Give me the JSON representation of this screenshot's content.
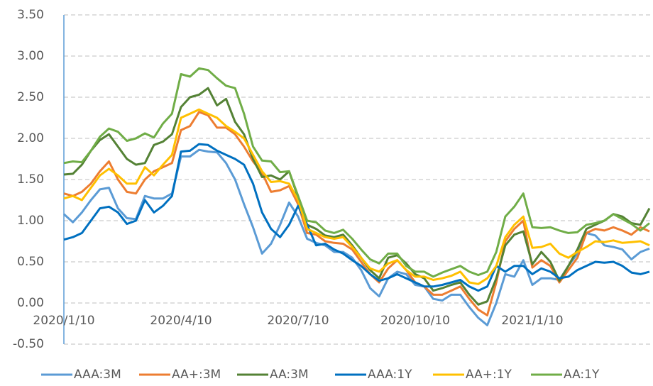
{
  "chart_data": {
    "type": "line",
    "categories": [
      "2020/1/10",
      null,
      null,
      null,
      null,
      null,
      null,
      null,
      null,
      null,
      null,
      null,
      null,
      "2020/4/10",
      null,
      null,
      null,
      null,
      null,
      null,
      null,
      null,
      null,
      null,
      null,
      null,
      "2020/7/10",
      null,
      null,
      null,
      null,
      null,
      null,
      null,
      null,
      null,
      null,
      null,
      null,
      "2020/10/10",
      null,
      null,
      null,
      null,
      null,
      null,
      null,
      null,
      null,
      null,
      null,
      null,
      "2021/1/10",
      null,
      null,
      null,
      null,
      null,
      null,
      null,
      null,
      null,
      null,
      null,
      null,
      null
    ],
    "series": [
      {
        "name": "AAA:3M",
        "color": "#5b9bd5",
        "values": [
          1.08,
          0.98,
          1.1,
          1.25,
          1.38,
          1.4,
          1.15,
          1.03,
          1.02,
          1.3,
          1.27,
          1.27,
          1.33,
          1.78,
          1.78,
          1.86,
          1.84,
          1.83,
          1.7,
          1.5,
          1.2,
          0.92,
          0.6,
          0.72,
          0.95,
          1.22,
          1.05,
          0.78,
          0.73,
          0.7,
          0.62,
          0.62,
          0.55,
          0.4,
          0.18,
          0.08,
          0.3,
          0.38,
          0.35,
          0.22,
          0.2,
          0.05,
          0.03,
          0.1,
          0.1,
          -0.05,
          -0.18,
          -0.27,
          0.0,
          0.35,
          0.32,
          0.52,
          0.22,
          0.3,
          0.3,
          0.28,
          0.45,
          0.6,
          0.85,
          0.82,
          0.7,
          0.68,
          0.65,
          0.53,
          0.62,
          0.66
        ]
      },
      {
        "name": "AA+:3M",
        "color": "#ed7d31",
        "values": [
          1.33,
          1.3,
          1.35,
          1.45,
          1.6,
          1.72,
          1.5,
          1.35,
          1.33,
          1.5,
          1.6,
          1.65,
          1.7,
          2.1,
          2.15,
          2.32,
          2.28,
          2.13,
          2.13,
          2.05,
          1.9,
          1.72,
          1.58,
          1.35,
          1.37,
          1.42,
          1.2,
          0.85,
          0.83,
          0.75,
          0.73,
          0.72,
          0.65,
          0.5,
          0.35,
          0.25,
          0.42,
          0.52,
          0.4,
          0.25,
          0.2,
          0.1,
          0.1,
          0.15,
          0.2,
          0.05,
          -0.08,
          -0.15,
          0.25,
          0.75,
          0.9,
          1.0,
          0.43,
          0.52,
          0.45,
          0.25,
          0.4,
          0.55,
          0.85,
          0.9,
          0.88,
          0.92,
          0.88,
          0.83,
          0.92,
          0.87
        ]
      },
      {
        "name": "AA:3M",
        "color": "#548235",
        "values": [
          1.56,
          1.57,
          1.68,
          1.85,
          1.98,
          2.05,
          1.9,
          1.75,
          1.68,
          1.7,
          1.92,
          1.96,
          2.05,
          2.38,
          2.5,
          2.53,
          2.61,
          2.4,
          2.48,
          2.2,
          2.05,
          1.75,
          1.53,
          1.55,
          1.5,
          1.6,
          1.28,
          0.95,
          0.9,
          0.82,
          0.8,
          0.83,
          0.7,
          0.55,
          0.4,
          0.3,
          0.55,
          0.58,
          0.48,
          0.35,
          0.3,
          0.15,
          0.18,
          0.22,
          0.25,
          0.1,
          -0.02,
          0.02,
          0.3,
          0.7,
          0.83,
          0.87,
          0.47,
          0.62,
          0.5,
          0.27,
          0.45,
          0.65,
          0.9,
          0.95,
          1.0,
          1.08,
          1.05,
          0.97,
          0.95,
          1.15
        ]
      },
      {
        "name": "AAA:1Y",
        "color": "#0070c0",
        "values": [
          0.77,
          0.8,
          0.85,
          1.0,
          1.15,
          1.17,
          1.1,
          0.96,
          1.0,
          1.25,
          1.1,
          1.18,
          1.3,
          1.84,
          1.85,
          1.93,
          1.92,
          1.85,
          1.8,
          1.75,
          1.68,
          1.45,
          1.1,
          0.9,
          0.8,
          0.95,
          1.18,
          0.95,
          0.7,
          0.72,
          0.65,
          0.6,
          0.52,
          0.45,
          0.35,
          0.27,
          0.3,
          0.35,
          0.3,
          0.25,
          0.2,
          0.2,
          0.22,
          0.25,
          0.28,
          0.2,
          0.15,
          0.2,
          0.45,
          0.38,
          0.45,
          0.45,
          0.35,
          0.42,
          0.38,
          0.3,
          0.32,
          0.4,
          0.45,
          0.5,
          0.49,
          0.5,
          0.45,
          0.37,
          0.35,
          0.38
        ]
      },
      {
        "name": "AA+:1Y",
        "color": "#ffc000",
        "values": [
          1.27,
          1.3,
          1.25,
          1.4,
          1.55,
          1.63,
          1.55,
          1.45,
          1.45,
          1.65,
          1.55,
          1.68,
          1.8,
          2.25,
          2.3,
          2.35,
          2.3,
          2.25,
          2.15,
          2.08,
          2.0,
          1.8,
          1.6,
          1.47,
          1.48,
          1.45,
          1.25,
          0.9,
          0.85,
          0.8,
          0.78,
          0.8,
          0.68,
          0.55,
          0.42,
          0.38,
          0.48,
          0.52,
          0.4,
          0.32,
          0.32,
          0.28,
          0.3,
          0.33,
          0.38,
          0.25,
          0.23,
          0.3,
          0.45,
          0.8,
          0.95,
          1.05,
          0.67,
          0.68,
          0.72,
          0.6,
          0.55,
          0.62,
          0.68,
          0.75,
          0.74,
          0.76,
          0.73,
          0.74,
          0.75,
          0.7
        ]
      },
      {
        "name": "AA:1Y",
        "color": "#70ad47",
        "values": [
          1.7,
          1.72,
          1.71,
          1.85,
          2.02,
          2.12,
          2.08,
          1.97,
          2.0,
          2.06,
          2.01,
          2.18,
          2.3,
          2.78,
          2.75,
          2.85,
          2.83,
          2.73,
          2.64,
          2.61,
          2.3,
          1.9,
          1.73,
          1.72,
          1.59,
          1.6,
          1.3,
          1.0,
          0.98,
          0.88,
          0.85,
          0.89,
          0.78,
          0.65,
          0.53,
          0.48,
          0.6,
          0.6,
          0.45,
          0.38,
          0.38,
          0.32,
          0.37,
          0.41,
          0.45,
          0.38,
          0.34,
          0.38,
          0.62,
          1.05,
          1.17,
          1.33,
          0.92,
          0.91,
          0.92,
          0.88,
          0.85,
          0.86,
          0.95,
          0.97,
          1.0,
          1.08,
          1.02,
          0.96,
          0.88,
          0.97
        ]
      }
    ],
    "ylim": [
      -0.5,
      3.5
    ],
    "yticks": [
      {
        "value": -0.5,
        "label": "-0.50"
      },
      {
        "value": 0,
        "label": "0.00"
      },
      {
        "value": 0.5,
        "label": "0.50"
      },
      {
        "value": 1,
        "label": "1.00"
      },
      {
        "value": 1.5,
        "label": "1.50"
      },
      {
        "value": 2,
        "label": "2.00"
      },
      {
        "value": 2.5,
        "label": "2.50"
      },
      {
        "value": 3,
        "label": "3.00"
      },
      {
        "value": 3.5,
        "label": "3.50"
      }
    ],
    "grid": true,
    "legend": "bottom"
  }
}
